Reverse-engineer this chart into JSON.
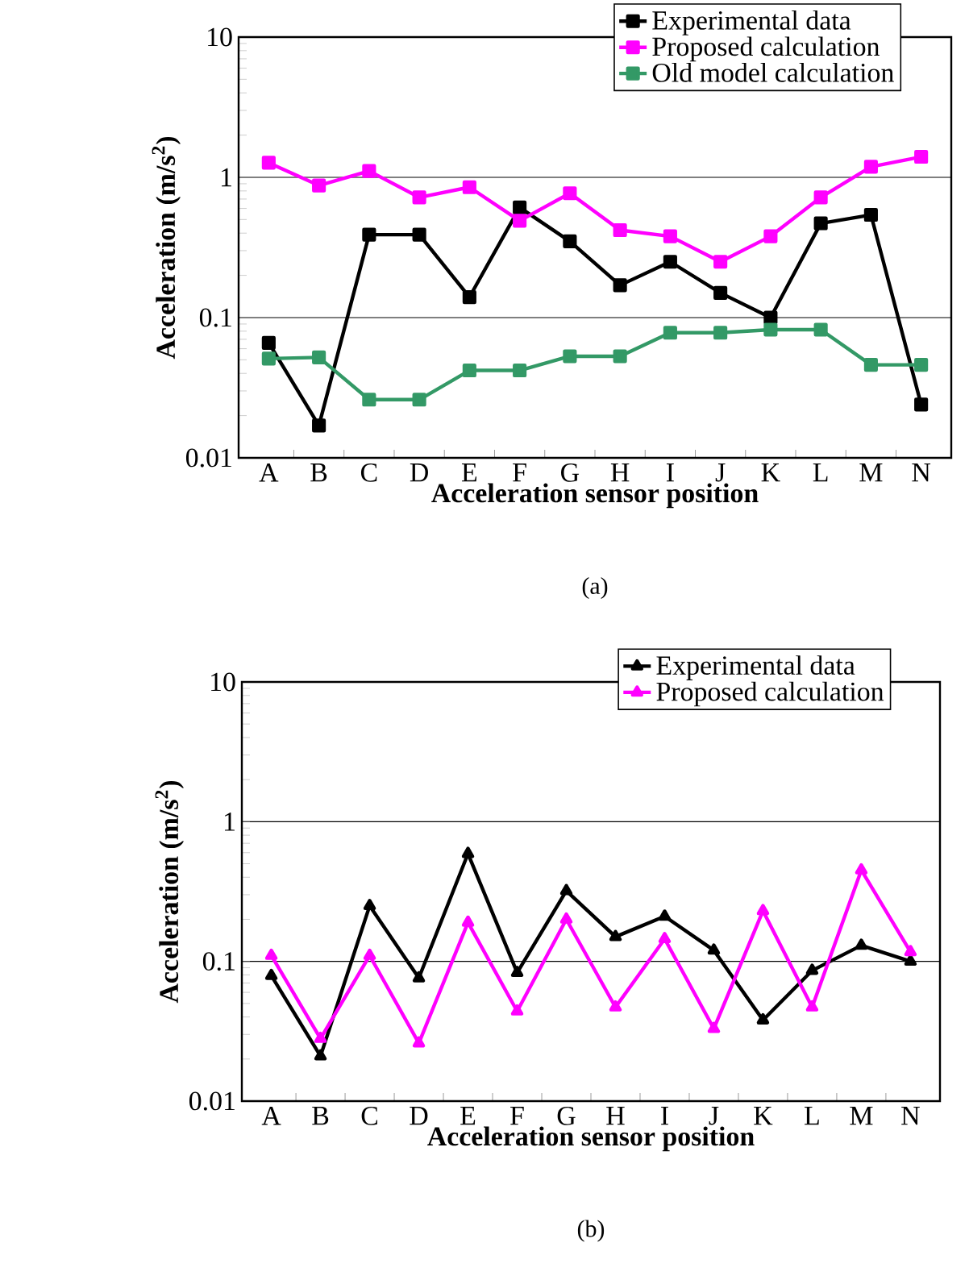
{
  "chart_data": [
    {
      "type": "line",
      "xlabel": "Acceleration sensor position",
      "ylabel": "Acceleration (m/s$^{2}$)",
      "categories": [
        "A",
        "B",
        "C",
        "D",
        "E",
        "F",
        "G",
        "H",
        "I",
        "J",
        "K",
        "L",
        "M",
        "N"
      ],
      "log": "y",
      "ylim": [
        0.01,
        10
      ],
      "yticks": [
        0.01,
        0.1,
        1,
        10
      ],
      "grid": "y",
      "legend": "top right",
      "marker": "square",
      "line_style": "solid",
      "annotations": [
        "(a)"
      ],
      "series": [
        {
          "name": "Experimental data",
          "color": "#000000",
          "values": [
            0.066,
            0.017,
            0.39,
            0.39,
            0.14,
            0.61,
            0.35,
            0.17,
            0.25,
            0.15,
            0.1,
            0.47,
            0.54,
            0.024
          ]
        },
        {
          "name": "Proposed calculation",
          "color": "#ff00ff",
          "values": [
            1.27,
            0.875,
            1.11,
            0.72,
            0.85,
            0.49,
            0.77,
            0.42,
            0.38,
            0.25,
            0.38,
            0.72,
            1.19,
            1.4
          ]
        },
        {
          "name": "Old model calculation",
          "color": "#339966",
          "values": [
            0.051,
            0.052,
            0.026,
            0.026,
            0.042,
            0.042,
            0.053,
            0.053,
            0.078,
            0.078,
            0.082,
            0.082,
            0.046,
            0.046
          ]
        }
      ]
    },
    {
      "type": "line",
      "xlabel": "Acceleration sensor position",
      "ylabel": "Acceleration (m/s$^{2}$)",
      "categories": [
        "A",
        "B",
        "C",
        "D",
        "E",
        "F",
        "G",
        "H",
        "I",
        "J",
        "K",
        "L",
        "M",
        "N"
      ],
      "log": "y",
      "ylim": [
        0.01,
        10
      ],
      "yticks": [
        0.01,
        0.1,
        1,
        10
      ],
      "grid": "y",
      "legend": "top right",
      "marker": "triangle",
      "line_style": "solid",
      "annotations": [
        "(b)"
      ],
      "series": [
        {
          "name": "Experimental data",
          "color": "#000000",
          "values": [
            0.079,
            0.021,
            0.25,
            0.076,
            0.59,
            0.083,
            0.32,
            0.15,
            0.21,
            0.12,
            0.038,
            0.086,
            0.13,
            0.1
          ]
        },
        {
          "name": "Proposed calculation",
          "color": "#ff00ff",
          "values": [
            0.11,
            0.028,
            0.11,
            0.026,
            0.19,
            0.044,
            0.2,
            0.047,
            0.145,
            0.033,
            0.23,
            0.047,
            0.45,
            0.117
          ]
        }
      ]
    }
  ]
}
